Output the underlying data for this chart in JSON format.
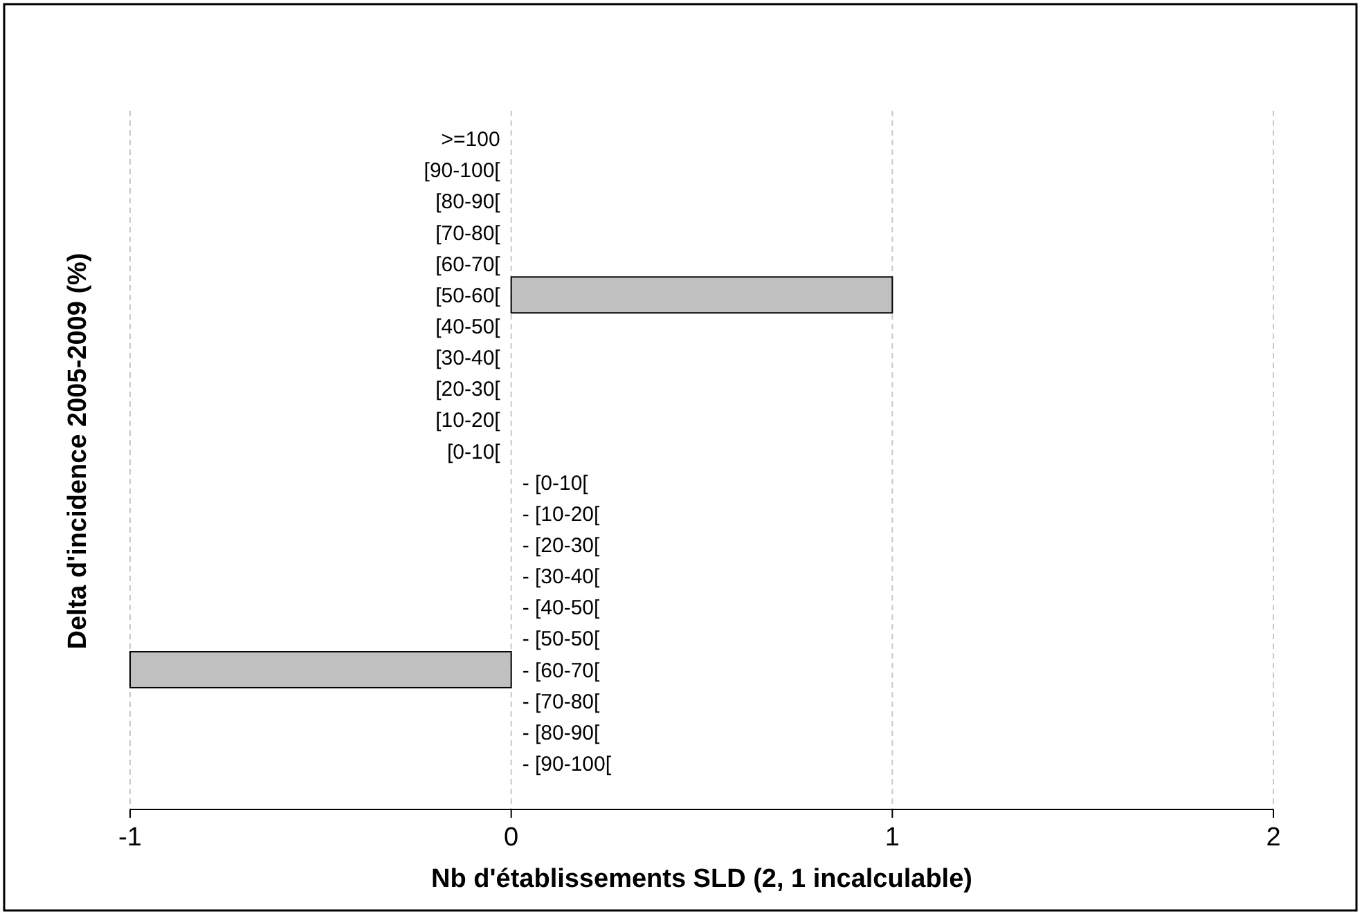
{
  "chart_data": {
    "type": "bar",
    "orientation": "horizontal",
    "xlabel": "Nb d'établissements SLD (2, 1 incalculable)",
    "ylabel": "Delta d'incidence 2005-2009 (%)",
    "categories": [
      ">=100",
      "[90-100[",
      "[80-90[",
      "[70-80[",
      "[60-70[",
      "[50-60[",
      "[40-50[",
      "[30-40[",
      "[20-30[",
      "[10-20[",
      "[0-10[",
      "- [0-10[",
      "- [10-20[",
      "- [20-30[",
      "- [30-40[",
      "- [40-50[",
      "- [50-50[",
      "- [60-70[",
      "- [70-80[",
      "- [80-90[",
      "- [90-100["
    ],
    "values": [
      null,
      null,
      null,
      null,
      null,
      1,
      null,
      null,
      null,
      null,
      null,
      null,
      null,
      null,
      null,
      null,
      null,
      -1,
      null,
      null,
      null
    ],
    "color": "#c0c0c0",
    "xlim": [
      -1,
      2
    ],
    "xticks": [
      -1,
      0,
      1,
      2
    ],
    "grid": "x"
  }
}
